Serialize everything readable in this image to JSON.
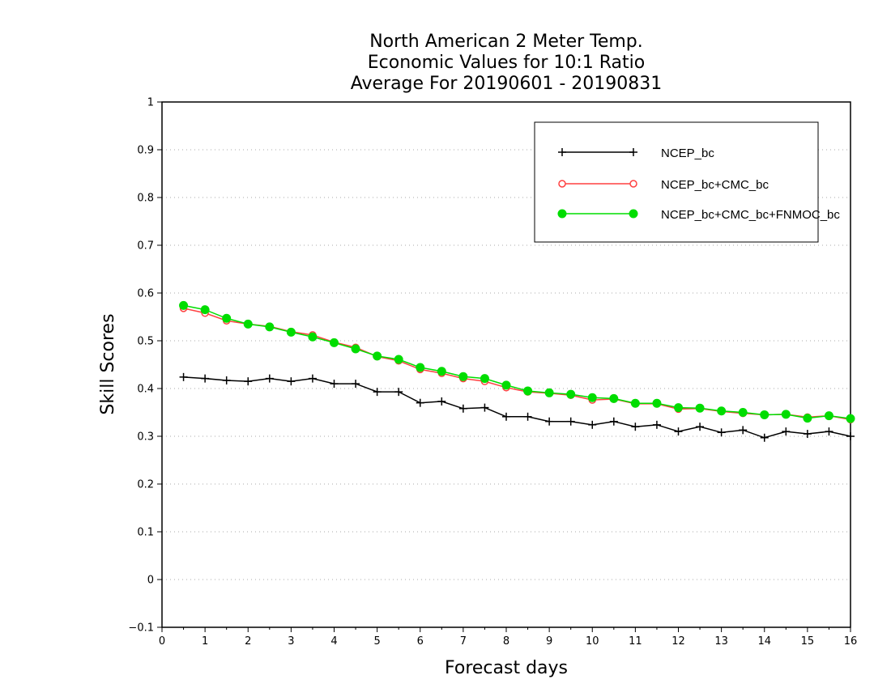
{
  "chart_data": {
    "type": "line",
    "title_lines": [
      "North American 2 Meter Temp.",
      "Economic Values for 10:1 Ratio",
      "Average For 20190601 - 20190831"
    ],
    "xlabel": "Forecast days",
    "ylabel": "Skill Scores",
    "xlim": [
      0,
      16
    ],
    "ylim": [
      -0.1,
      1
    ],
    "xticks": [
      0,
      1,
      2,
      3,
      4,
      5,
      6,
      7,
      8,
      9,
      10,
      11,
      12,
      13,
      14,
      15,
      16
    ],
    "xtick_labels": [
      "0",
      "1",
      "2",
      "3",
      "4",
      "5",
      "6",
      "7",
      "8",
      "9",
      "10",
      "11",
      "12",
      "13",
      "14",
      "15",
      "16"
    ],
    "yticks": [
      -0.1,
      0,
      0.1,
      0.2,
      0.3,
      0.4,
      0.5,
      0.6,
      0.7,
      0.8,
      0.9,
      1
    ],
    "ytick_labels": [
      "−0.1",
      "0",
      "0.1",
      "0.2",
      "0.3",
      "0.4",
      "0.5",
      "0.6",
      "0.7",
      "0.8",
      "0.9",
      "1"
    ],
    "grid": "horizontal dotted",
    "legend_position": "top-right",
    "x": [
      0.5,
      1,
      1.5,
      2,
      2.5,
      3,
      3.5,
      4,
      4.5,
      5,
      5.5,
      6,
      6.5,
      7,
      7.5,
      8,
      8.5,
      9,
      9.5,
      10,
      10.5,
      11,
      11.5,
      12,
      12.5,
      13,
      13.5,
      14,
      14.5,
      15,
      15.5,
      16
    ],
    "series": [
      {
        "name": "NCEP_bc",
        "color": "#000000",
        "marker": "plus",
        "values": [
          0.424,
          0.421,
          0.417,
          0.415,
          0.421,
          0.415,
          0.421,
          0.41,
          0.41,
          0.393,
          0.393,
          0.37,
          0.373,
          0.358,
          0.36,
          0.341,
          0.341,
          0.331,
          0.331,
          0.324,
          0.331,
          0.32,
          0.324,
          0.31,
          0.32,
          0.308,
          0.313,
          0.297,
          0.31,
          0.305,
          0.31,
          0.3
        ]
      },
      {
        "name": "NCEP_bc+CMC_bc",
        "color": "#ff4040",
        "marker": "open-circle",
        "values": [
          0.568,
          0.558,
          0.542,
          0.535,
          0.53,
          0.519,
          0.512,
          0.497,
          0.486,
          0.467,
          0.458,
          0.44,
          0.432,
          0.421,
          0.415,
          0.402,
          0.393,
          0.39,
          0.386,
          0.376,
          0.378,
          0.368,
          0.368,
          0.357,
          0.358,
          0.352,
          0.348,
          0.345,
          0.346,
          0.34,
          0.343,
          0.335
        ]
      },
      {
        "name": "NCEP_bc+CMC_bc+FNMOC_bc",
        "color": "#00dd00",
        "marker": "filled-circle",
        "values": [
          0.574,
          0.565,
          0.547,
          0.535,
          0.529,
          0.518,
          0.508,
          0.496,
          0.483,
          0.468,
          0.461,
          0.444,
          0.436,
          0.425,
          0.421,
          0.407,
          0.395,
          0.391,
          0.388,
          0.381,
          0.379,
          0.369,
          0.369,
          0.36,
          0.359,
          0.353,
          0.35,
          0.345,
          0.346,
          0.338,
          0.343,
          0.337
        ]
      }
    ]
  }
}
